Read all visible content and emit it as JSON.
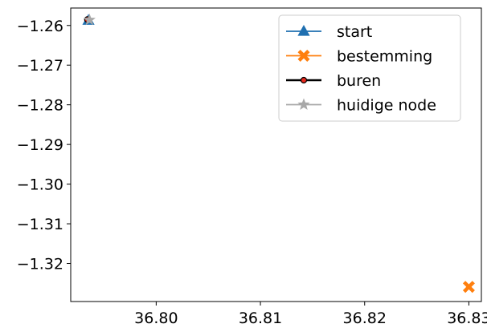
{
  "chart_data": {
    "type": "line",
    "title": "",
    "xlabel": "",
    "ylabel": "",
    "xlim": [
      36.7918,
      36.8312
    ],
    "ylim": [
      -1.3296,
      -1.2556
    ],
    "x_ticks": [
      {
        "value": 36.8,
        "label": "36.80"
      },
      {
        "value": 36.81,
        "label": "36.81"
      },
      {
        "value": 36.82,
        "label": "36.82"
      },
      {
        "value": 36.83,
        "label": "36.83"
      }
    ],
    "y_ticks": [
      {
        "value": -1.26,
        "label": "−1.26"
      },
      {
        "value": -1.27,
        "label": "−1.27"
      },
      {
        "value": -1.28,
        "label": "−1.28"
      },
      {
        "value": -1.29,
        "label": "−1.29"
      },
      {
        "value": -1.3,
        "label": "−1.30"
      },
      {
        "value": -1.31,
        "label": "−1.31"
      },
      {
        "value": -1.32,
        "label": "−1.32"
      }
    ],
    "grid": false,
    "legend_position": "top-right",
    "series": [
      {
        "name": "start",
        "marker": "triangle-up",
        "color": "#1f6fb0",
        "line_color": "#1f6fb0",
        "points": [
          [
            36.7935,
            -1.2587
          ]
        ]
      },
      {
        "name": "bestemming",
        "marker": "x-filled",
        "color": "#ff7f0e",
        "line_color": "#ff7f0e",
        "points": [
          [
            36.83,
            -1.3259
          ]
        ]
      },
      {
        "name": "buren",
        "marker": "circle",
        "color": "#e8281c",
        "line_color": "#000000",
        "points": [
          [
            36.7934,
            -1.2585
          ]
        ]
      },
      {
        "name": "huidige node",
        "marker": "star",
        "color": "#a8a8a8",
        "line_color": "#a8a8a8",
        "points": [
          [
            36.7936,
            -1.2586
          ]
        ]
      }
    ]
  }
}
